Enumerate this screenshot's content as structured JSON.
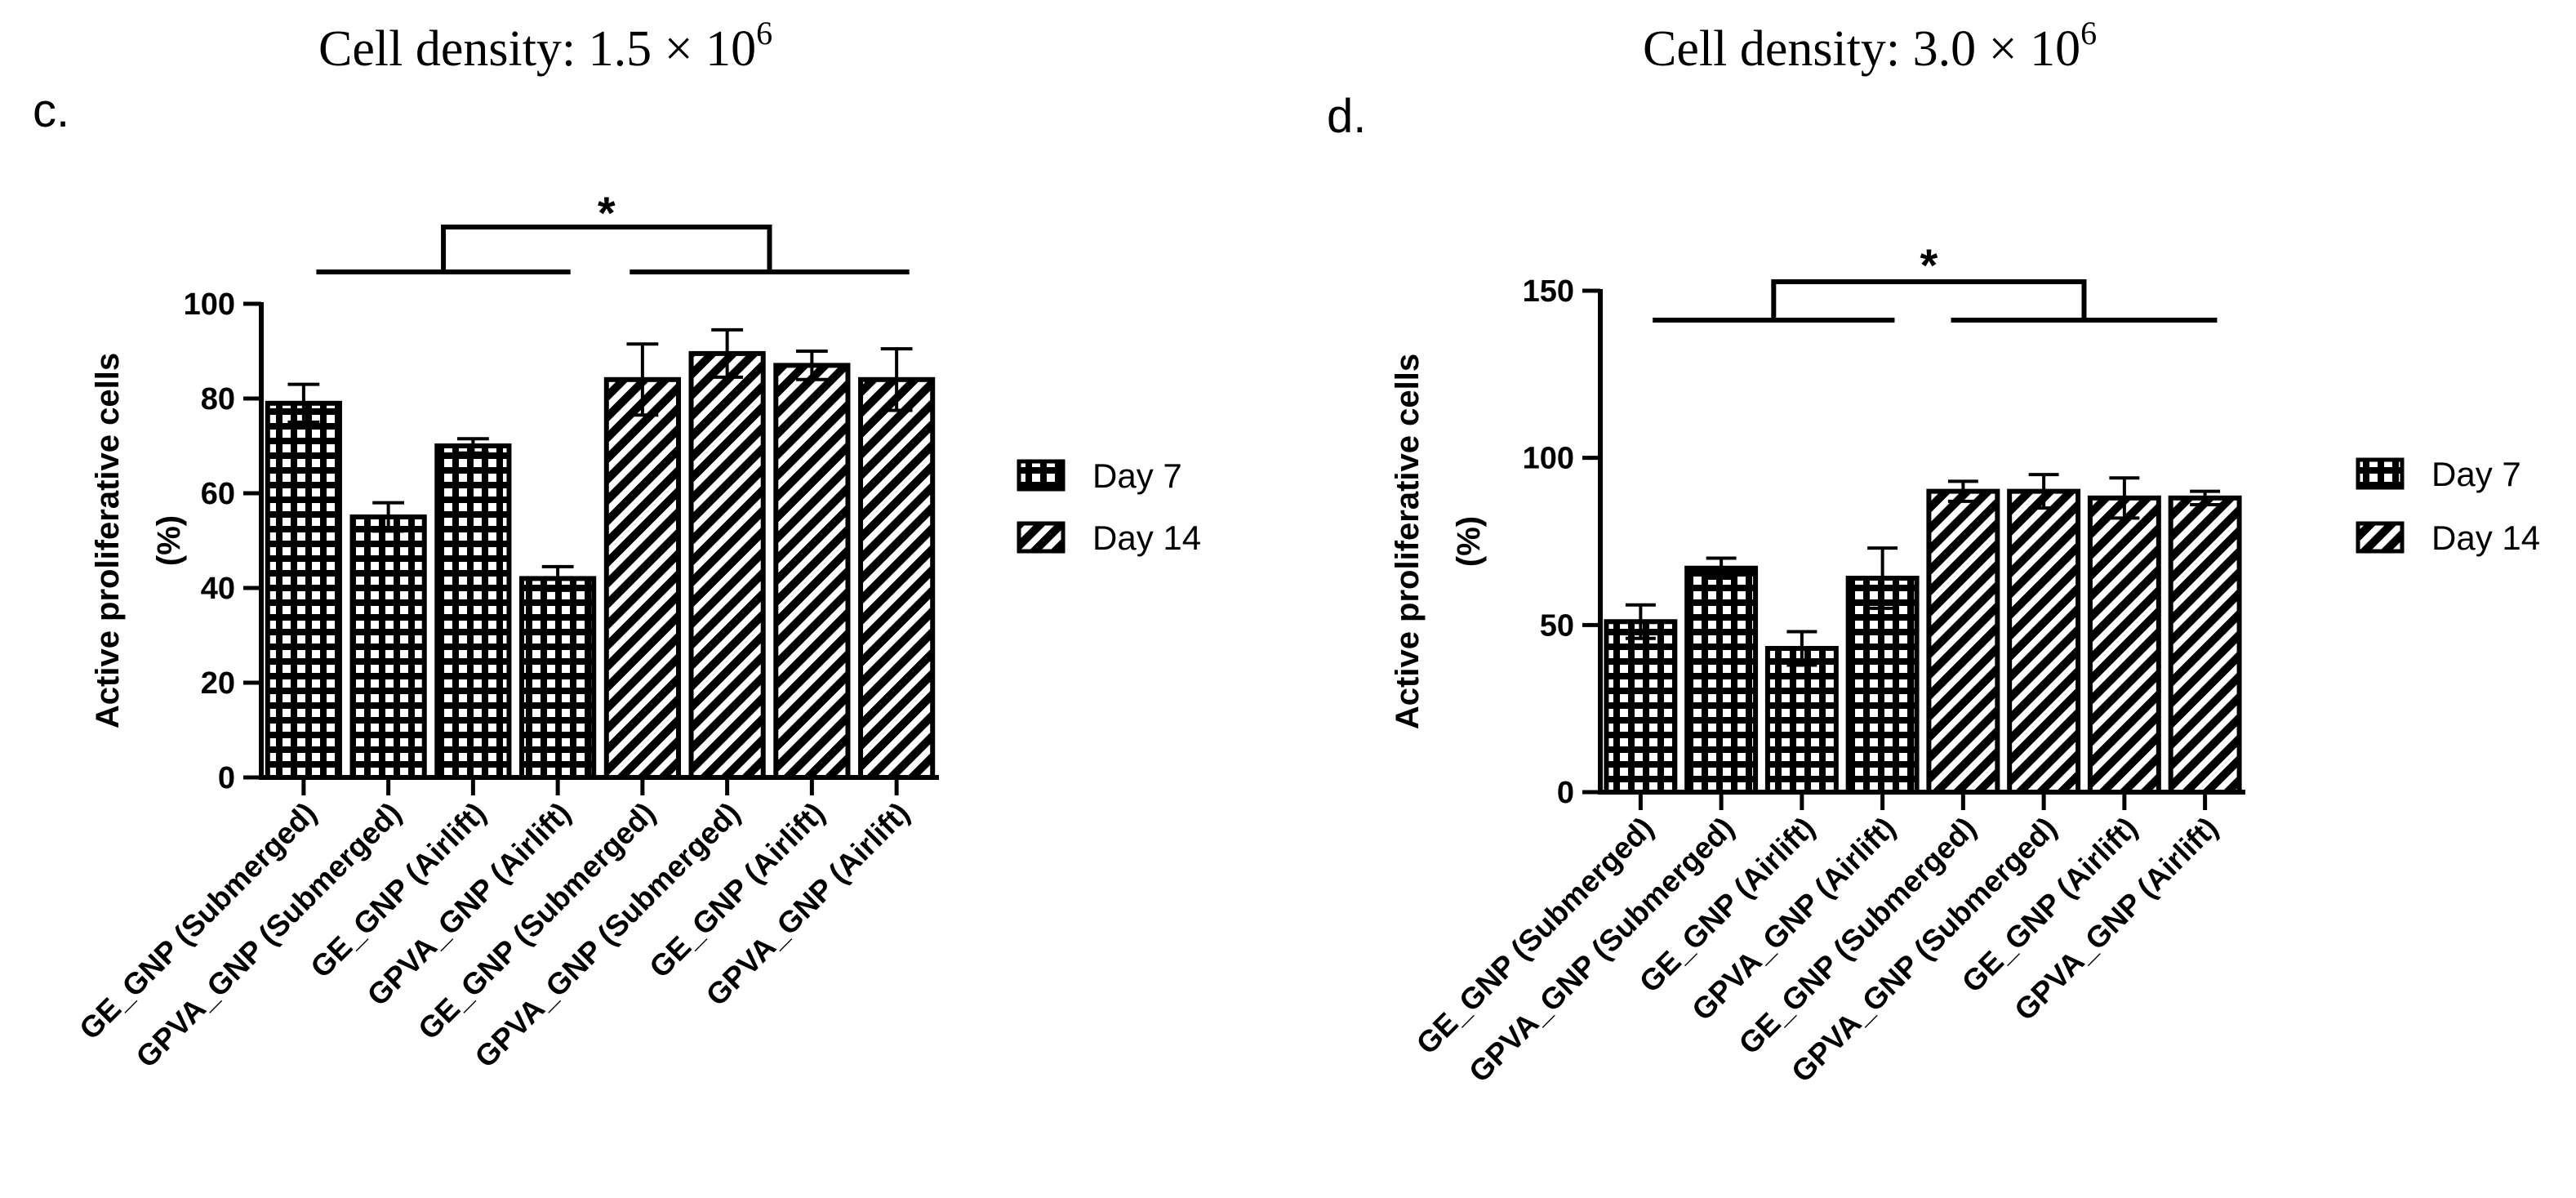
{
  "chart_data": [
    {
      "type": "bar",
      "panel_label": "c.",
      "title_prefix": "Cell density: 1.5 × 10",
      "title_exponent": "6",
      "xlabel": "",
      "ylabel_line1": "Active proliferative cells",
      "ylabel_line2": "(%)",
      "ylim": [
        0,
        100
      ],
      "yticks": [
        "0",
        "20",
        "40",
        "60",
        "80",
        "100"
      ],
      "ytick_values": [
        0,
        20,
        40,
        60,
        80,
        100
      ],
      "categories": [
        "GE_GNP (Submerged)",
        "GPVA_GNP (Submerged)",
        "GE_GNP (Airlift)",
        "GPVA_GNP (Airlift)",
        "GE_GNP (Submerged)",
        "GPVA_GNP (Submerged)",
        "GE_GNP (Airlift)",
        "GPVA_GNP (Airlift)"
      ],
      "values": [
        79,
        55,
        70,
        42,
        84,
        89.5,
        87,
        84
      ],
      "errors": [
        4,
        3,
        1.5,
        2.5,
        7.5,
        5,
        3,
        6.5
      ],
      "series_of_bar": [
        "Day 7",
        "Day 7",
        "Day 7",
        "Day 7",
        "Day 14",
        "Day 14",
        "Day 14",
        "Day 14"
      ],
      "legend": [
        "Day 7",
        "Day 14"
      ],
      "significance": {
        "label": "*",
        "group_a": [
          0,
          3
        ],
        "group_b": [
          4,
          7
        ]
      }
    },
    {
      "type": "bar",
      "panel_label": "d.",
      "title_prefix": "Cell density: 3.0 × 10",
      "title_exponent": "6",
      "xlabel": "",
      "ylabel_line1": "Active proliferative cells",
      "ylabel_line2": "(%)",
      "ylim": [
        0,
        150
      ],
      "yticks": [
        "0",
        "50",
        "100",
        "150"
      ],
      "ytick_values": [
        0,
        50,
        100,
        150
      ],
      "categories": [
        "GE_GNP (Submerged)",
        "GPVA_GNP (Submerged)",
        "GE_GNP (Airlift)",
        "GPVA_GNP (Airlift)",
        "GE_GNP (Submerged)",
        "GPVA_GNP (Submerged)",
        "GE_GNP (Airlift)",
        "GPVA_GNP (Airlift)"
      ],
      "values": [
        51,
        67,
        43,
        64,
        90,
        90,
        88,
        88
      ],
      "errors": [
        5,
        3,
        5,
        9,
        3,
        5,
        6,
        2
      ],
      "series_of_bar": [
        "Day 7",
        "Day 7",
        "Day 7",
        "Day 7",
        "Day 14",
        "Day 14",
        "Day 14",
        "Day 14"
      ],
      "legend": [
        "Day 7",
        "Day 14"
      ],
      "significance": {
        "label": "*",
        "group_a": [
          0,
          3
        ],
        "group_b": [
          4,
          7
        ]
      }
    }
  ]
}
